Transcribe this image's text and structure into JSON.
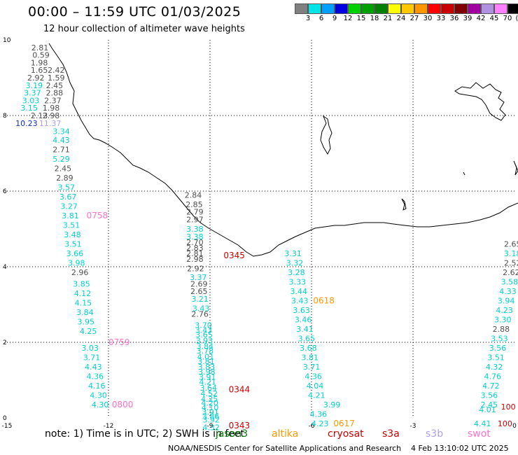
{
  "header": {
    "title": "00:00 – 11:59 UTC 01/03/2025",
    "subtitle": "12 hour collection of altimeter wave heights"
  },
  "legend": {
    "colors": [
      "#808080",
      "#00e5e5",
      "#00a0ff",
      "#0000e0",
      "#00d000",
      "#00a000",
      "#008000",
      "#ffff00",
      "#ffc800",
      "#ff9600",
      "#ff0000",
      "#c80000",
      "#800000",
      "#a000a0",
      "#b090e0",
      "#ff80ff",
      "#000000"
    ],
    "labels": [
      "3",
      "6",
      "9",
      "12",
      "15",
      "18",
      "21",
      "24",
      "27",
      "30",
      "33",
      "36",
      "39",
      "42",
      "45",
      "70",
      "(ft)"
    ]
  },
  "axes": {
    "x_ticks": [
      "-15",
      "-12",
      "-9",
      "-6",
      "-3",
      "0"
    ],
    "y_ticks": [
      "10",
      "8",
      "6",
      "4",
      "2",
      "0"
    ]
  },
  "satellite_colors": {
    "gray": "#505050",
    "cyan": "#00d0d0",
    "blue": "#1030c0",
    "lavender": "#b0a0e8",
    "pink": "#ff70c8",
    "red": "#cc0000",
    "orange": "#ff9900",
    "green": "#008000"
  },
  "labels": [
    {
      "t": "2.81",
      "c": "gray",
      "x": -14.28,
      "y": 9.8
    },
    {
      "t": "0.59",
      "c": "gray",
      "x": -14.25,
      "y": 9.6
    },
    {
      "t": "1.98",
      "c": "gray",
      "x": -14.3,
      "y": 9.4
    },
    {
      "t": "1.65",
      "c": "gray",
      "x": -14.3,
      "y": 9.2
    },
    {
      "t": "2.42",
      "c": "gray",
      "x": -13.8,
      "y": 9.2
    },
    {
      "t": "2.92",
      "c": "gray",
      "x": -14.4,
      "y": 9.0
    },
    {
      "t": "1.59",
      "c": "gray",
      "x": -13.8,
      "y": 9.0
    },
    {
      "t": "3.19",
      "c": "cyan",
      "x": -14.45,
      "y": 8.8
    },
    {
      "t": "2.45",
      "c": "gray",
      "x": -13.85,
      "y": 8.8
    },
    {
      "t": "3.37",
      "c": "cyan",
      "x": -14.5,
      "y": 8.6
    },
    {
      "t": "2.88",
      "c": "gray",
      "x": -13.85,
      "y": 8.6
    },
    {
      "t": "3.03",
      "c": "cyan",
      "x": -14.55,
      "y": 8.4
    },
    {
      "t": "2.37",
      "c": "gray",
      "x": -13.9,
      "y": 8.4
    },
    {
      "t": "3.15",
      "c": "cyan",
      "x": -14.6,
      "y": 8.2
    },
    {
      "t": "1.98",
      "c": "gray",
      "x": -13.95,
      "y": 8.2
    },
    {
      "t": "2.13",
      "c": "gray",
      "x": -14.3,
      "y": 8.0
    },
    {
      "t": "2.98",
      "c": "gray",
      "x": -13.95,
      "y": 8.0
    },
    {
      "t": "10.23",
      "c": "blue",
      "x": -14.75,
      "y": 7.8
    },
    {
      "t": "11.37",
      "c": "lavender",
      "x": -14.05,
      "y": 7.8
    },
    {
      "t": "3.34",
      "c": "cyan",
      "x": -13.65,
      "y": 7.58
    },
    {
      "t": "4.43",
      "c": "cyan",
      "x": -13.65,
      "y": 7.35
    },
    {
      "t": "2.71",
      "c": "gray",
      "x": -13.65,
      "y": 7.1
    },
    {
      "t": "5.29",
      "c": "cyan",
      "x": -13.65,
      "y": 6.85
    },
    {
      "t": "2.45",
      "c": "gray",
      "x": -13.6,
      "y": 6.6
    },
    {
      "t": "2.89",
      "c": "gray",
      "x": -13.55,
      "y": 6.35
    },
    {
      "t": "3.57",
      "c": "cyan",
      "x": -13.5,
      "y": 6.1
    },
    {
      "t": "3.67",
      "c": "cyan",
      "x": -13.45,
      "y": 5.85
    },
    {
      "t": "3.27",
      "c": "cyan",
      "x": -13.42,
      "y": 5.6
    },
    {
      "t": "3.81",
      "c": "cyan",
      "x": -13.38,
      "y": 5.35
    },
    {
      "t": "0758",
      "c": "pink",
      "x": -12.65,
      "y": 5.35
    },
    {
      "t": "3.51",
      "c": "cyan",
      "x": -13.35,
      "y": 5.1
    },
    {
      "t": "3.48",
      "c": "cyan",
      "x": -13.32,
      "y": 4.85
    },
    {
      "t": "3.51",
      "c": "cyan",
      "x": -13.3,
      "y": 4.6
    },
    {
      "t": "3.66",
      "c": "cyan",
      "x": -13.25,
      "y": 4.35
    },
    {
      "t": "3.98",
      "c": "cyan",
      "x": -13.2,
      "y": 4.1
    },
    {
      "t": "2.96",
      "c": "gray",
      "x": -13.1,
      "y": 3.85
    },
    {
      "t": "3.85",
      "c": "cyan",
      "x": -13.05,
      "y": 3.55
    },
    {
      "t": "4.12",
      "c": "cyan",
      "x": -13.02,
      "y": 3.3
    },
    {
      "t": "4.15",
      "c": "cyan",
      "x": -13.0,
      "y": 3.05
    },
    {
      "t": "3.84",
      "c": "cyan",
      "x": -12.95,
      "y": 2.8
    },
    {
      "t": "3.95",
      "c": "cyan",
      "x": -12.92,
      "y": 2.55
    },
    {
      "t": "4.25",
      "c": "cyan",
      "x": -12.85,
      "y": 2.3
    },
    {
      "t": "0759",
      "c": "pink",
      "x": -12.0,
      "y": 2.0
    },
    {
      "t": "3.03",
      "c": "cyan",
      "x": -12.8,
      "y": 1.85
    },
    {
      "t": "3.71",
      "c": "cyan",
      "x": -12.75,
      "y": 1.6
    },
    {
      "t": "4.43",
      "c": "cyan",
      "x": -12.7,
      "y": 1.35
    },
    {
      "t": "4.36",
      "c": "cyan",
      "x": -12.65,
      "y": 1.1
    },
    {
      "t": "4.16",
      "c": "cyan",
      "x": -12.6,
      "y": 0.85
    },
    {
      "t": "4.30",
      "c": "cyan",
      "x": -12.55,
      "y": 0.6
    },
    {
      "t": "4.30",
      "c": "cyan",
      "x": -12.5,
      "y": 0.35
    },
    {
      "t": "0800",
      "c": "pink",
      "x": -11.9,
      "y": 0.35
    },
    {
      "t": "2.84",
      "c": "gray",
      "x": -9.75,
      "y": 5.9
    },
    {
      "t": "2.85",
      "c": "gray",
      "x": -9.72,
      "y": 5.65
    },
    {
      "t": "2.79",
      "c": "gray",
      "x": -9.7,
      "y": 5.45
    },
    {
      "t": "2.97",
      "c": "gray",
      "x": -9.7,
      "y": 5.25
    },
    {
      "t": "3.38",
      "c": "cyan",
      "x": -9.7,
      "y": 5.0
    },
    {
      "t": "3.38",
      "c": "cyan",
      "x": -9.7,
      "y": 4.8
    },
    {
      "t": "2.70",
      "c": "gray",
      "x": -9.7,
      "y": 4.65
    },
    {
      "t": "2.83",
      "c": "gray",
      "x": -9.7,
      "y": 4.5
    },
    {
      "t": "2.81",
      "c": "gray",
      "x": -9.7,
      "y": 4.35
    },
    {
      "t": "2.98",
      "c": "gray",
      "x": -9.7,
      "y": 4.2
    },
    {
      "t": "0345",
      "c": "red",
      "x": -8.6,
      "y": 4.3
    },
    {
      "t": "2.92",
      "c": "gray",
      "x": -9.68,
      "y": 3.95
    },
    {
      "t": "3.37",
      "c": "cyan",
      "x": -9.6,
      "y": 3.72
    },
    {
      "t": "2.69",
      "c": "gray",
      "x": -9.58,
      "y": 3.55
    },
    {
      "t": "2.65",
      "c": "gray",
      "x": -9.58,
      "y": 3.35
    },
    {
      "t": "3.21",
      "c": "cyan",
      "x": -9.55,
      "y": 3.15
    },
    {
      "t": "3.43",
      "c": "cyan",
      "x": -9.52,
      "y": 2.9
    },
    {
      "t": "2.76",
      "c": "gray",
      "x": -9.55,
      "y": 2.75
    },
    {
      "t": "3.70",
      "c": "cyan",
      "x": -9.45,
      "y": 2.45
    },
    {
      "t": "3.43",
      "c": "cyan",
      "x": -9.44,
      "y": 2.32
    },
    {
      "t": "3.65",
      "c": "cyan",
      "x": -9.43,
      "y": 2.2
    },
    {
      "t": "3.93",
      "c": "cyan",
      "x": -9.42,
      "y": 2.05
    },
    {
      "t": "3.84",
      "c": "cyan",
      "x": -9.4,
      "y": 1.9
    },
    {
      "t": "3.78",
      "c": "cyan",
      "x": -9.4,
      "y": 1.78
    },
    {
      "t": "4.01",
      "c": "cyan",
      "x": -9.38,
      "y": 1.62
    },
    {
      "t": "3.81",
      "c": "cyan",
      "x": -9.37,
      "y": 1.5
    },
    {
      "t": "3.83",
      "c": "cyan",
      "x": -9.36,
      "y": 1.35
    },
    {
      "t": "3.98",
      "c": "cyan",
      "x": -9.35,
      "y": 1.22
    },
    {
      "t": "3.91",
      "c": "cyan",
      "x": -9.33,
      "y": 1.08
    },
    {
      "t": "4.21",
      "c": "cyan",
      "x": -9.32,
      "y": 0.95
    },
    {
      "t": "3.64",
      "c": "cyan",
      "x": -9.3,
      "y": 0.8
    },
    {
      "t": "4.52",
      "c": "cyan",
      "x": -9.28,
      "y": 0.65
    },
    {
      "t": "4.25",
      "c": "cyan",
      "x": -9.27,
      "y": 0.5
    },
    {
      "t": "4.20",
      "c": "cyan",
      "x": -9.26,
      "y": 0.4
    },
    {
      "t": "4.10",
      "c": "cyan",
      "x": -9.25,
      "y": 0.28
    },
    {
      "t": "3.91",
      "c": "cyan",
      "x": -9.24,
      "y": 0.16
    },
    {
      "t": "3.86",
      "c": "cyan",
      "x": -9.23,
      "y": 0.05
    },
    {
      "t": "0344",
      "c": "red",
      "x": -8.45,
      "y": 0.75
    },
    {
      "t": "3.92",
      "c": "cyan",
      "x": -9.22,
      "y": -0.05
    },
    {
      "t": "4.32",
      "c": "cyan",
      "x": -9.22,
      "y": -0.25
    },
    {
      "t": "0343",
      "c": "red",
      "x": -8.45,
      "y": -0.2
    },
    {
      "t": "3.31",
      "c": "cyan",
      "x": -6.8,
      "y": 4.35
    },
    {
      "t": "3.32",
      "c": "cyan",
      "x": -6.75,
      "y": 4.1
    },
    {
      "t": "3.28",
      "c": "cyan",
      "x": -6.7,
      "y": 3.85
    },
    {
      "t": "3.33",
      "c": "cyan",
      "x": -6.67,
      "y": 3.6
    },
    {
      "t": "3.44",
      "c": "cyan",
      "x": -6.63,
      "y": 3.35
    },
    {
      "t": "3.43",
      "c": "cyan",
      "x": -6.6,
      "y": 3.1
    },
    {
      "t": "0618",
      "c": "orange",
      "x": -5.95,
      "y": 3.1
    },
    {
      "t": "3.63",
      "c": "cyan",
      "x": -6.55,
      "y": 2.85
    },
    {
      "t": "3.46",
      "c": "cyan",
      "x": -6.5,
      "y": 2.6
    },
    {
      "t": "3.41",
      "c": "cyan",
      "x": -6.45,
      "y": 2.35
    },
    {
      "t": "3.65",
      "c": "cyan",
      "x": -6.4,
      "y": 2.1
    },
    {
      "t": "3.68",
      "c": "cyan",
      "x": -6.35,
      "y": 1.85
    },
    {
      "t": "3.81",
      "c": "cyan",
      "x": -6.3,
      "y": 1.6
    },
    {
      "t": "3.71",
      "c": "cyan",
      "x": -6.25,
      "y": 1.35
    },
    {
      "t": "4.36",
      "c": "cyan",
      "x": -6.2,
      "y": 1.1
    },
    {
      "t": "4.04",
      "c": "cyan",
      "x": -6.15,
      "y": 0.85
    },
    {
      "t": "4.21",
      "c": "cyan",
      "x": -6.1,
      "y": 0.6
    },
    {
      "t": "3.99",
      "c": "cyan",
      "x": -5.65,
      "y": 0.35
    },
    {
      "t": "4.36",
      "c": "cyan",
      "x": -6.05,
      "y": 0.1
    },
    {
      "t": "4.23",
      "c": "cyan",
      "x": -6.0,
      "y": -0.15
    },
    {
      "t": "0617",
      "c": "orange",
      "x": -5.35,
      "y": -0.15
    },
    {
      "t": "2.65",
      "c": "gray",
      "x": -0.05,
      "y": 4.6
    },
    {
      "t": "3.18",
      "c": "cyan",
      "x": -0.05,
      "y": 4.35
    },
    {
      "t": "2.52",
      "c": "gray",
      "x": -0.3,
      "y": 4.1
    },
    {
      "t": "2.62",
      "c": "gray",
      "x": -0.35,
      "y": 3.85
    },
    {
      "t": "3.58",
      "c": "cyan",
      "x": -0.4,
      "y": 3.6
    },
    {
      "t": "4.33",
      "c": "cyan",
      "x": -0.45,
      "y": 3.35
    },
    {
      "t": "3.94",
      "c": "cyan",
      "x": -0.5,
      "y": 3.1
    },
    {
      "t": "4.23",
      "c": "cyan",
      "x": -0.55,
      "y": 2.85
    },
    {
      "t": "3.30",
      "c": "cyan",
      "x": -0.6,
      "y": 2.6
    },
    {
      "t": "2.88",
      "c": "gray",
      "x": -0.65,
      "y": 2.35
    },
    {
      "t": "3.53",
      "c": "cyan",
      "x": -0.7,
      "y": 2.1
    },
    {
      "t": "3.56",
      "c": "cyan",
      "x": -0.75,
      "y": 1.85
    },
    {
      "t": "3.51",
      "c": "cyan",
      "x": -0.8,
      "y": 1.6
    },
    {
      "t": "4.32",
      "c": "cyan",
      "x": -0.85,
      "y": 1.35
    },
    {
      "t": "4.76",
      "c": "cyan",
      "x": -0.9,
      "y": 1.1
    },
    {
      "t": "4.72",
      "c": "cyan",
      "x": -0.95,
      "y": 0.85
    },
    {
      "t": "3.56",
      "c": "cyan",
      "x": -1.0,
      "y": 0.6
    },
    {
      "t": "2.45",
      "c": "cyan",
      "x": -1.0,
      "y": 0.35
    },
    {
      "t": "4.01",
      "c": "cyan",
      "x": -1.05,
      "y": 0.22
    },
    {
      "t": "4.41",
      "c": "cyan",
      "x": -1.2,
      "y": -0.15
    },
    {
      "t": "100",
      "c": "red",
      "x": -0.4,
      "y": 0.3
    },
    {
      "t": "100",
      "c": "red",
      "x": -0.5,
      "y": -0.15
    }
  ],
  "footer": {
    "note": "note:  1) Time is in UTC;  2) SWH is in feet",
    "satellites": [
      {
        "name": "jason3",
        "c": "green"
      },
      {
        "name": "altika",
        "c": "orange"
      },
      {
        "name": "cryosat",
        "c": "red"
      },
      {
        "name": "s3a",
        "c": "red"
      },
      {
        "name": "s3b",
        "c": "lavender"
      },
      {
        "name": "swot",
        "c": "pink"
      }
    ],
    "credit": "NOAA/NESDIS Center for Satellite Applications and Research",
    "timestamp": "4 Feb 13:10:02 UTC 2025"
  }
}
